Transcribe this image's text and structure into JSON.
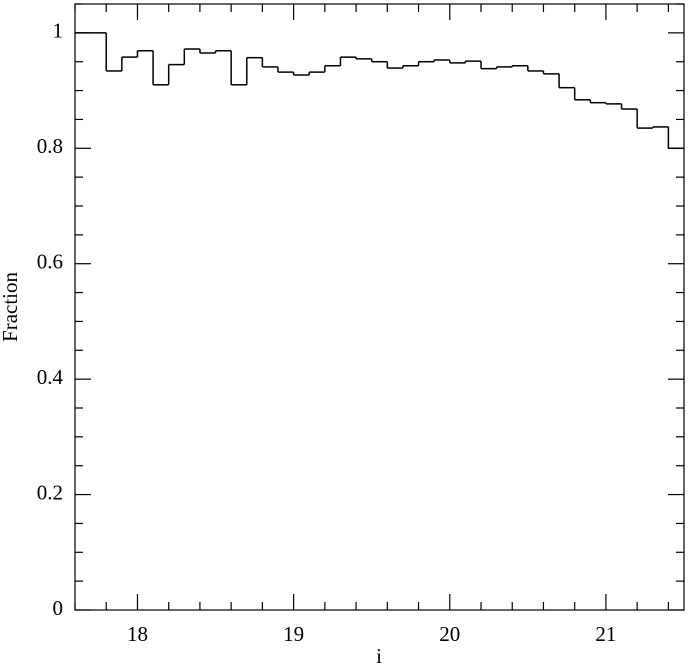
{
  "chart_data": {
    "type": "histogram",
    "xlabel": "i",
    "ylabel": "Fraction",
    "bins": [
      17.6,
      17.7,
      17.8,
      17.9,
      18.0,
      18.1,
      18.2,
      18.3,
      18.4,
      18.5,
      18.6,
      18.7,
      18.8,
      18.9,
      19.0,
      19.1,
      19.2,
      19.3,
      19.4,
      19.5,
      19.6,
      19.7,
      19.8,
      19.9,
      20.0,
      20.1,
      20.2,
      20.3,
      20.4,
      20.5,
      20.6,
      20.7,
      20.8,
      20.9,
      21.0,
      21.1,
      21.2,
      21.3,
      21.4,
      21.5
    ],
    "values": [
      1.0,
      1.0,
      0.934,
      0.958,
      0.969,
      0.91,
      0.945,
      0.972,
      0.965,
      0.969,
      0.91,
      0.957,
      0.941,
      0.932,
      0.927,
      0.932,
      0.943,
      0.958,
      0.955,
      0.95,
      0.939,
      0.943,
      0.95,
      0.953,
      0.948,
      0.951,
      0.938,
      0.941,
      0.943,
      0.934,
      0.929,
      0.905,
      0.884,
      0.879,
      0.877,
      0.868,
      0.835,
      0.837,
      0.8
    ],
    "color": "#000000",
    "xlim": [
      17.6,
      21.5
    ],
    "ylim": [
      0,
      1.05
    ],
    "xticks": [
      18,
      19,
      20,
      21
    ],
    "yticks": [
      0,
      0.2,
      0.4,
      0.6,
      0.8,
      1
    ],
    "xticks_minor": [
      17.6,
      17.8,
      18.2,
      18.4,
      18.6,
      18.8,
      19.2,
      19.4,
      19.6,
      19.8,
      20.2,
      20.4,
      20.6,
      20.8,
      21.2,
      21.4
    ],
    "yticks_minor": [
      0.05,
      0.1,
      0.15,
      0.25,
      0.3,
      0.35,
      0.45,
      0.5,
      0.55,
      0.65,
      0.7,
      0.75,
      0.85,
      0.9,
      0.95,
      1.05
    ]
  }
}
